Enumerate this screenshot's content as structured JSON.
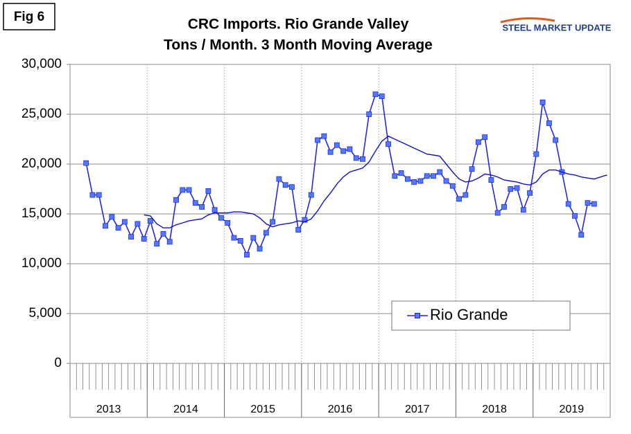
{
  "chart_data": {
    "type": "line",
    "figure_label": "Fig 6",
    "logo": "STEEL MARKET UPDATE",
    "title": "CRC Imports. Rio Grande Valley",
    "subtitle": "Tons / Month. 3 Month Moving Average",
    "categories": [
      null,
      null,
      null,
      null,
      null,
      null,
      null,
      null,
      null,
      null,
      null,
      null,
      null,
      null,
      null,
      null,
      null,
      null,
      null,
      null,
      null,
      null,
      null,
      null,
      null,
      null,
      null,
      null,
      null,
      null,
      null,
      null,
      null,
      null,
      null,
      null,
      null,
      null,
      null,
      null,
      null,
      null,
      null,
      null,
      null,
      null,
      null,
      null,
      null,
      null,
      null,
      null,
      null,
      null,
      null,
      null,
      null,
      null,
      null,
      null,
      null,
      null,
      null,
      null,
      null,
      null,
      null,
      null,
      null,
      null,
      null,
      null,
      null,
      null,
      null,
      null,
      null,
      null,
      null,
      null,
      null,
      null,
      null,
      null
    ],
    "x_groups": [
      "2013",
      "2014",
      "2015",
      "2016",
      "2017",
      "2018",
      "2019"
    ],
    "ylim": [
      0,
      30000
    ],
    "yticks": [
      0,
      {
        "value": 5000,
        "label": "5,000"
      },
      {
        "value": 10000,
        "label": "10,000"
      },
      {
        "value": 15000,
        "label": "15,000"
      },
      {
        "value": 20000,
        "label": "20,000"
      },
      {
        "value": 25000,
        "label": "25,000"
      },
      {
        "value": 30000,
        "label": "30,000"
      }
    ],
    "grid": true,
    "legend": "lower right",
    "series": [
      {
        "name": "Rio Grande",
        "color": "#2525e8",
        "marker_color": "#4f7cff",
        "values": [
          null,
          null,
          20100,
          16900,
          16900,
          13800,
          14700,
          13600,
          14200,
          12700,
          14000,
          12500,
          14300,
          12000,
          13000,
          12200,
          16400,
          17400,
          17400,
          16100,
          15700,
          17300,
          15400,
          14600,
          14100,
          12600,
          12300,
          10900,
          12600,
          11500,
          13100,
          14200,
          18500,
          17900,
          17700,
          13400,
          14400,
          16900,
          22400,
          22800,
          21200,
          21900,
          21300,
          21500,
          20600,
          20500,
          25000,
          27000,
          26800,
          22000,
          18800,
          19100,
          18500,
          18200,
          18300,
          18800,
          18800,
          19200,
          18300,
          17800,
          16500,
          16900,
          19500,
          22200,
          22700,
          18400,
          15100,
          15700,
          17500,
          17600,
          15400,
          17100,
          21000,
          26200,
          24100,
          22400,
          19200,
          16000,
          14800,
          12900,
          16100,
          16000,
          null,
          null
        ]
      },
      {
        "color": "#1010c8",
        "values": [
          null,
          null,
          null,
          null,
          null,
          null,
          null,
          null,
          null,
          null,
          null,
          14900,
          14800,
          14000,
          13600,
          13600,
          13900,
          14100,
          14300,
          14400,
          14500,
          14900,
          15100,
          15100,
          15100,
          15200,
          15200,
          15100,
          15000,
          14600,
          14000,
          13700,
          13900,
          14000,
          14100,
          14300,
          14200,
          14500,
          15300,
          16300,
          17100,
          18000,
          18700,
          19200,
          19400,
          19600,
          20200,
          21300,
          22300,
          22800,
          22500,
          22200,
          21900,
          21600,
          21300,
          21000,
          20900,
          20800,
          20000,
          19200,
          18500,
          18200,
          18300,
          18600,
          19000,
          18900,
          18700,
          18400,
          18300,
          18200,
          18000,
          17900,
          18200,
          19000,
          19400,
          19400,
          19200,
          19000,
          18900,
          18700,
          18600,
          18500,
          18700,
          18900
        ]
      }
    ]
  }
}
